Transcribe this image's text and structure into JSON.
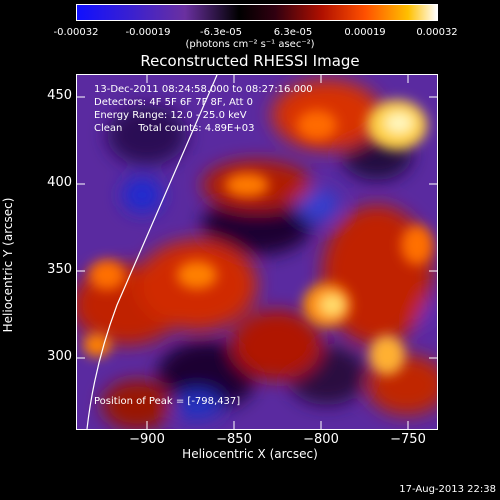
{
  "colorbar": {
    "ticks": [
      "-0.00032",
      "-0.00019",
      "-6.3e-05",
      "6.3e-05",
      "0.00019",
      "0.00032"
    ],
    "units": "(photons cm⁻² s⁻¹ asec⁻²)"
  },
  "title": "Reconstructed RHESSI Image",
  "info": {
    "time_range": "13-Dec-2011 08:24:58.000 to 08:27:16.000",
    "detectors": "Detectors: 4F 5F 6F 7F 8F, Att 0",
    "energy": "Energy Range: 12.0 - 25.0 keV",
    "method": "Clean     Total counts: 4.89E+03",
    "peak": "Position of Peak = [-798,437]"
  },
  "axes": {
    "xlabel": "Heliocentric X (arcsec)",
    "ylabel": "Heliocentric Y (arcsec)",
    "xticks": [
      "−900",
      "−850",
      "−800",
      "−750"
    ],
    "yticks": [
      "450",
      "400",
      "350",
      "300"
    ]
  },
  "footer": "17-Aug-2013 22:38",
  "colors": {
    "background": "#000000",
    "limb": "#ffffff"
  }
}
